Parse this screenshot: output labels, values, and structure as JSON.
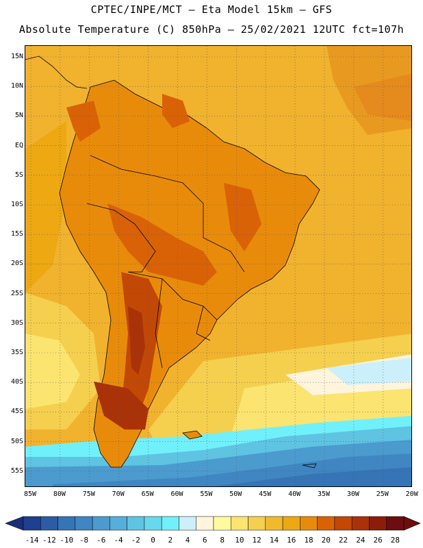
{
  "header": {
    "line1": "CPTEC/INPE/MCT –  Eta Model 15km – GFS",
    "line2": "Absolute Temperature (C) 850hPa – 25/02/2021 12UTC fct=107h"
  },
  "map": {
    "lat_labels": [
      "15N",
      "10N",
      "5N",
      "EQ",
      "5S",
      "10S",
      "15S",
      "20S",
      "25S",
      "30S",
      "35S",
      "40S",
      "45S",
      "50S",
      "55S"
    ],
    "lon_labels": [
      "85W",
      "80W",
      "75W",
      "70W",
      "65W",
      "60W",
      "55W",
      "50W",
      "45W",
      "40W",
      "35W",
      "30W",
      "25W",
      "20W"
    ]
  },
  "colorbar": {
    "labels": [
      "-14",
      "-12",
      "-10",
      "-8",
      "-6",
      "-4",
      "-2",
      "0",
      "2",
      "4",
      "6",
      "8",
      "10",
      "12",
      "14",
      "16",
      "18",
      "20",
      "22",
      "24",
      "26",
      "28"
    ],
    "colors": [
      "#1f3f8f",
      "#2a5da4",
      "#3574b5",
      "#3f86c2",
      "#4b9bcf",
      "#56afd9",
      "#5fc3e2",
      "#66d9ee",
      "#70f0fb",
      "#ccf0fb",
      "#fff4dc",
      "#fffa9e",
      "#fbe470",
      "#f5cf4e",
      "#efbb2d",
      "#eda812",
      "#e88b0a",
      "#d96207",
      "#c24806",
      "#a93208",
      "#8c1d0a",
      "#6c0d0f"
    ]
  }
}
